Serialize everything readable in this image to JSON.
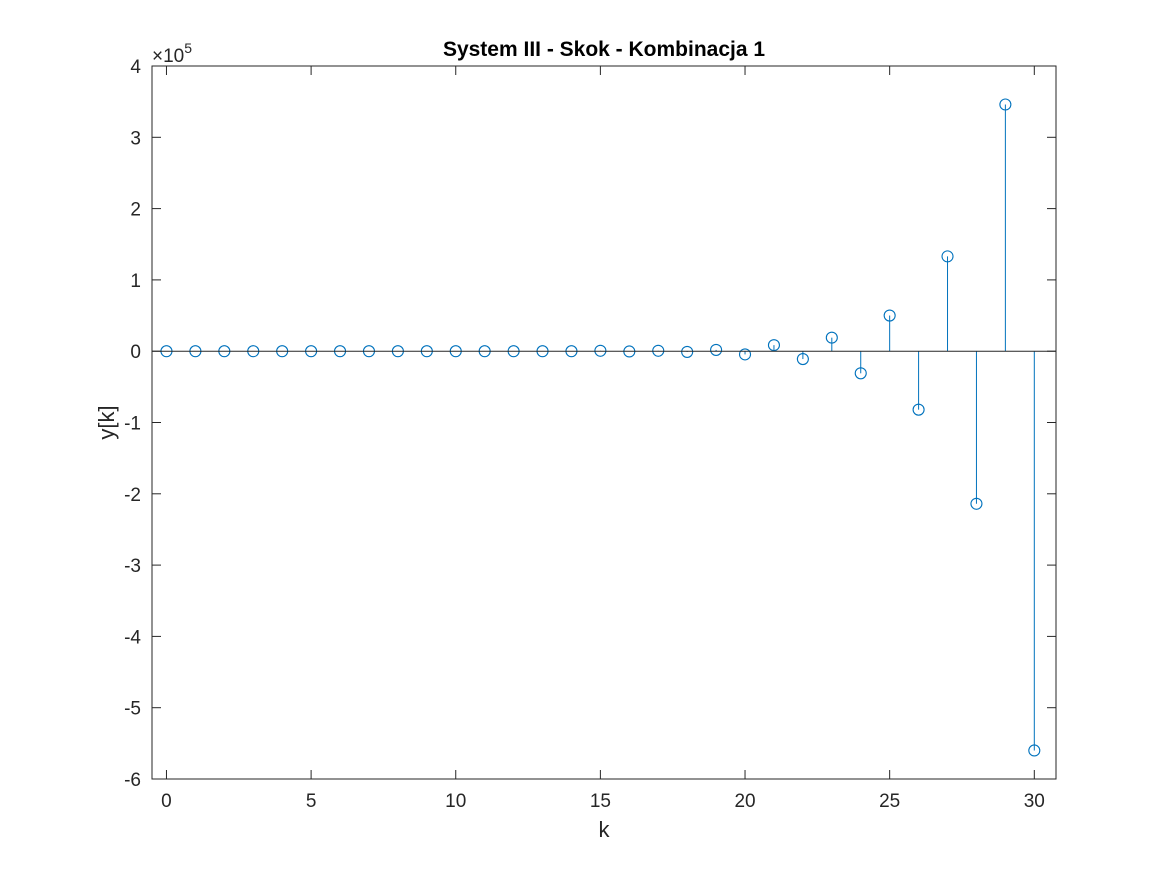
{
  "chart_data": {
    "type": "stem",
    "title": "System III - Skok - Kombinacja 1",
    "xlabel": "k",
    "ylabel": "y[k]",
    "xlim": [
      -0.5,
      30.75
    ],
    "ylim": [
      -600000,
      400000
    ],
    "x_ticks": [
      0,
      5,
      10,
      15,
      20,
      25,
      30
    ],
    "y_ticks": [
      -600000,
      -500000,
      -400000,
      -300000,
      -200000,
      -100000,
      0,
      100000,
      200000,
      300000,
      400000
    ],
    "x_tick_labels": [
      "0",
      "5",
      "10",
      "15",
      "20",
      "25",
      "30"
    ],
    "y_tick_labels": [
      "-6",
      "-5",
      "-4",
      "-3",
      "-2",
      "-1",
      "0",
      "1",
      "2",
      "3",
      "4"
    ],
    "y_exponent_base": "×10",
    "y_exponent_power": "5",
    "grid": false,
    "box": true,
    "series": [
      {
        "color": "#0072BD",
        "x": [
          0,
          1,
          2,
          3,
          4,
          5,
          6,
          7,
          8,
          9,
          10,
          11,
          12,
          13,
          14,
          15,
          16,
          17,
          18,
          19,
          20,
          21,
          22,
          23,
          24,
          25,
          26,
          27,
          28,
          29,
          30
        ],
        "values": [
          0,
          0,
          0,
          0,
          0,
          0,
          0,
          0,
          0,
          0,
          0,
          0,
          0,
          0,
          0,
          600,
          -400,
          600,
          -1000,
          1800,
          -4500,
          8500,
          -11000,
          19000,
          -31000,
          50000,
          -82000,
          133000,
          -214000,
          346000,
          -560000
        ]
      }
    ]
  }
}
